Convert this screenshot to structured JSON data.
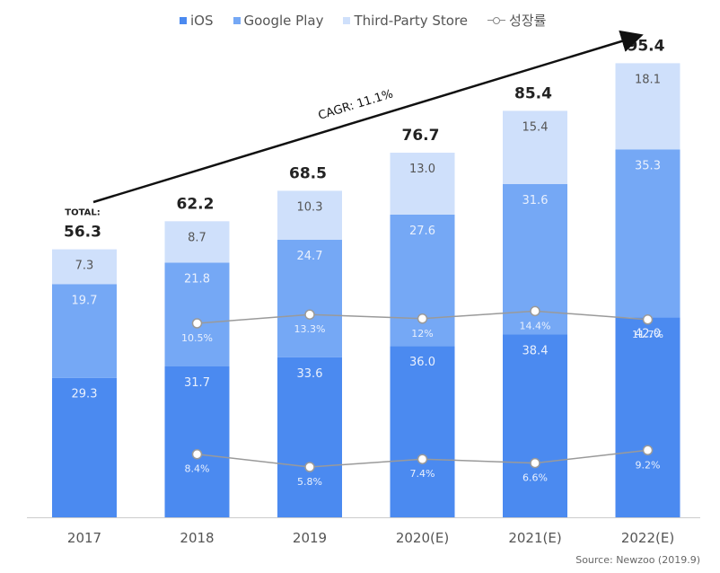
{
  "chart_data": {
    "type": "bar",
    "stacked": true,
    "categories": [
      "2017",
      "2018",
      "2019",
      "2020(E)",
      "2021(E)",
      "2022(E)"
    ],
    "series": [
      {
        "name": "iOS",
        "values": [
          29.3,
          31.7,
          33.6,
          36.0,
          38.4,
          42.0
        ],
        "color": "#4b8af0",
        "labels": [
          "29.3",
          "31.7",
          "33.6",
          "36.0",
          "38.4",
          "42.0"
        ]
      },
      {
        "name": "Google Play",
        "values": [
          19.7,
          21.8,
          24.7,
          27.6,
          31.6,
          35.3
        ],
        "color": "#75a8f5",
        "labels": [
          "19.7",
          "21.8",
          "24.7",
          "27.6",
          "31.6",
          "35.3"
        ]
      },
      {
        "name": "Third-Party Store",
        "values": [
          7.3,
          8.7,
          10.3,
          13.0,
          15.4,
          18.1
        ],
        "color": "#cfe0fb",
        "labels": [
          "7.3",
          "8.7",
          "10.3",
          "13.0",
          "15.4",
          "18.1"
        ]
      }
    ],
    "totals": [
      "56.3",
      "62.2",
      "68.5",
      "76.7",
      "85.4",
      "95.4"
    ],
    "total_prefix": "TOTAL:",
    "growth_series_name": "성장률",
    "growth_lines": [
      {
        "points": [
          "8.4%",
          "5.8%",
          "7.4%",
          "6.6%",
          "9.2%"
        ],
        "values": [
          8.4,
          5.8,
          7.4,
          6.6,
          9.2
        ]
      },
      {
        "points": [
          "10.5%",
          "13.3%",
          "12%",
          "14.4%",
          "11.7%"
        ],
        "values": [
          10.5,
          13.3,
          12.0,
          14.4,
          11.7
        ]
      }
    ],
    "cagr_label": "CAGR: 11.1%",
    "ylim": [
      0,
      100
    ],
    "grid": false,
    "legend_position": "top"
  },
  "legend": {
    "ios": "iOS",
    "google_play": "Google Play",
    "third_party": "Third-Party Store",
    "growth": "성장률"
  },
  "colors": {
    "ios": "#4b8af0",
    "google_play": "#75a8f5",
    "third_party": "#cfe0fb"
  },
  "source": "Source: Newzoo (2019.9)"
}
